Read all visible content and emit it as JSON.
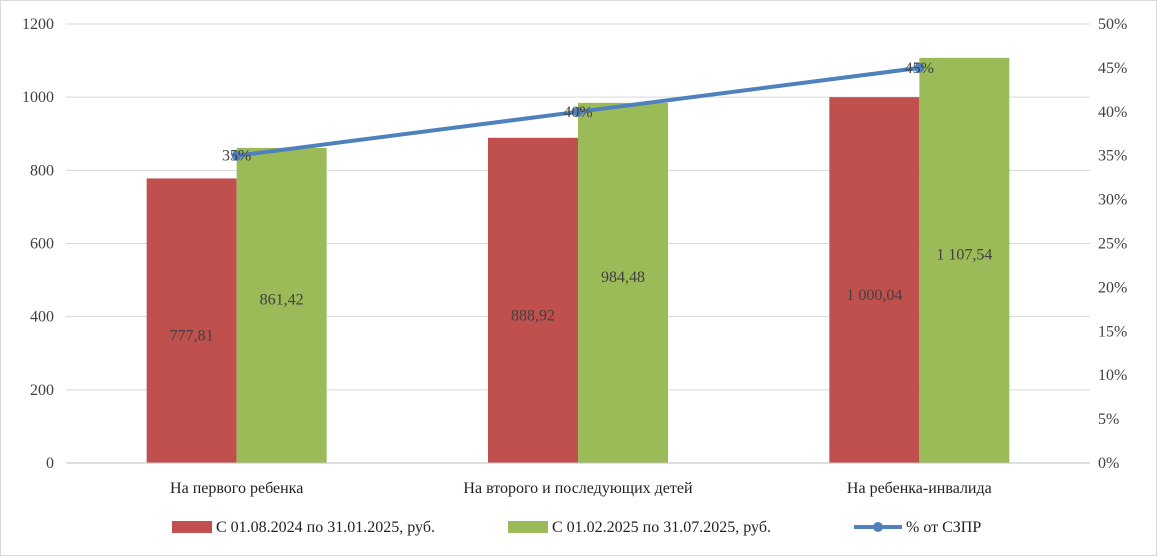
{
  "chart_data": {
    "type": "bar",
    "categories": [
      "На первого ребенка",
      "На второго и последующих детей",
      "На ребенка-инвалида"
    ],
    "series": [
      {
        "name": "С 01.08.2024  по 31.01.2025,  руб.",
        "type": "bar",
        "axis": "left",
        "color": "#c0504d",
        "values": [
          777.81,
          888.92,
          1000.04
        ],
        "labels": [
          "777,81",
          "888,92",
          "1 000,04"
        ]
      },
      {
        "name": "С 01.02.2025  по 31.07.2025,  руб.",
        "type": "bar",
        "axis": "left",
        "color": "#9bbb59",
        "values": [
          861.42,
          984.48,
          1107.54
        ],
        "labels": [
          "861,42",
          "984,48",
          "1 107,54"
        ]
      },
      {
        "name": "% от СЗПР",
        "type": "line",
        "axis": "right",
        "color": "#4f81bd",
        "values": [
          35,
          40,
          45
        ],
        "labels": [
          "35%",
          "40%",
          "45%"
        ]
      }
    ],
    "ylim": [
      0,
      1200
    ],
    "y_ticks": [
      "0",
      "200",
      "400",
      "600",
      "800",
      "1000",
      "1200"
    ],
    "y2lim": [
      0,
      50
    ],
    "y2_ticks": [
      "0%",
      "5%",
      "10%",
      "15%",
      "20%",
      "25%",
      "30%",
      "35%",
      "40%",
      "45%",
      "50%"
    ],
    "grid": true,
    "legend_position": "bottom"
  }
}
